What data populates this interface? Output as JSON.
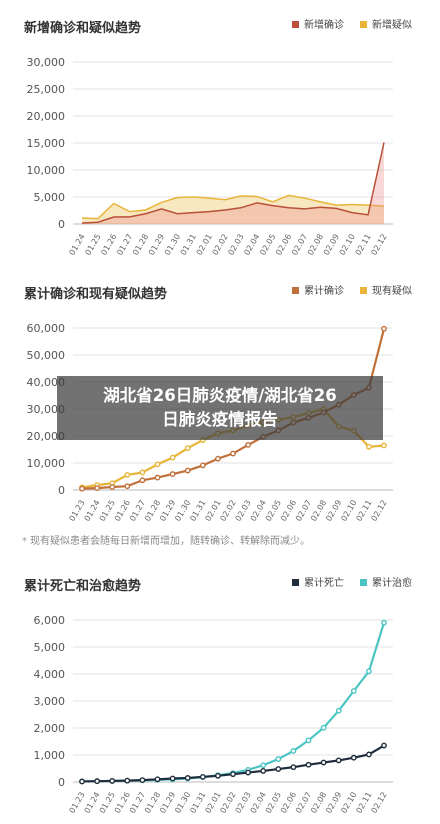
{
  "overlay": {
    "line1": "湖北省26日肺炎疫情/湖北省26",
    "line2": "日肺炎疫情报告"
  },
  "note": "现有疑似患者会随每日新增而增加，随转确诊、转解除而减少。",
  "chart_data": [
    {
      "type": "area",
      "title": "新增确诊和疑似趋势",
      "x": [
        "01.24",
        "01.25",
        "01.26",
        "01.27",
        "01.28",
        "01.29",
        "01.30",
        "01.31",
        "02.01",
        "02.02",
        "02.03",
        "02.04",
        "02.05",
        "02.06",
        "02.07",
        "02.08",
        "02.09",
        "02.10",
        "02.11",
        "02.12"
      ],
      "ylim": [
        0,
        30000
      ],
      "yticks": [
        "0",
        "5,000",
        "10,000",
        "15,000",
        "20,000",
        "25,000",
        "30,000"
      ],
      "grid": true,
      "legend": "top-right",
      "series": [
        {
          "name": "新增确诊",
          "color": "#b9503a",
          "values": [
            180,
            320,
            1300,
            1320,
            1900,
            2800,
            1900,
            2100,
            2300,
            2600,
            3000,
            3900,
            3400,
            3000,
            2800,
            3100,
            2900,
            2100,
            1700,
            15100
          ]
        },
        {
          "name": "新增疑似",
          "color": "#e8b53a",
          "values": [
            1100,
            1000,
            3800,
            2300,
            2600,
            4000,
            4900,
            5000,
            4800,
            4500,
            5200,
            5100,
            4100,
            5300,
            4800,
            4100,
            3500,
            3600,
            3500,
            3300
          ]
        }
      ]
    },
    {
      "type": "line",
      "title": "累计确诊和现有疑似趋势",
      "x": [
        "01.23",
        "01.24",
        "01.25",
        "01.26",
        "01.27",
        "01.28",
        "01.29",
        "01.30",
        "01.31",
        "02.01",
        "02.02",
        "02.03",
        "02.04",
        "02.05",
        "02.06",
        "02.07",
        "02.08",
        "02.09",
        "02.10",
        "02.11",
        "02.12"
      ],
      "ylim": [
        0,
        60000
      ],
      "yticks": [
        "0",
        "10,000",
        "20,000",
        "30,000",
        "40,000",
        "50,000",
        "60,000"
      ],
      "grid": true,
      "legend": "top-right",
      "series": [
        {
          "name": "累计确诊",
          "color": "#c0703a",
          "values": [
            500,
            700,
            1100,
            1400,
            3600,
            4600,
            5900,
            7200,
            9100,
            11600,
            13500,
            16700,
            19700,
            22100,
            25000,
            26700,
            28700,
            31600,
            35200,
            37900,
            59700
          ]
        },
        {
          "name": "现有疑似",
          "color": "#e8b53a",
          "values": [
            1000,
            1800,
            2500,
            5600,
            6500,
            9500,
            12000,
            15500,
            18500,
            21000,
            22000,
            24000,
            25000,
            26000,
            27000,
            28500,
            30000,
            23500,
            22000,
            16000,
            16500
          ]
        }
      ]
    },
    {
      "type": "line",
      "title": "累计死亡和治愈趋势",
      "x": [
        "01.23",
        "01.24",
        "01.25",
        "01.26",
        "01.27",
        "01.28",
        "01.29",
        "01.30",
        "01.31",
        "02.01",
        "02.02",
        "02.03",
        "02.04",
        "02.05",
        "02.06",
        "02.07",
        "02.08",
        "02.09",
        "02.10",
        "02.11",
        "02.12"
      ],
      "ylim": [
        0,
        6000
      ],
      "yticks": [
        "0",
        "1,000",
        "2,000",
        "3,000",
        "4,000",
        "5,000",
        "6,000"
      ],
      "grid": true,
      "legend": "top-right",
      "series": [
        {
          "name": "累计死亡",
          "color": "#1f2d3d",
          "values": [
            20,
            30,
            40,
            50,
            70,
            100,
            130,
            150,
            190,
            230,
            290,
            350,
            410,
            480,
            550,
            640,
            720,
            800,
            900,
            1020,
            1350
          ]
        },
        {
          "name": "累计治愈",
          "color": "#4bc5c3",
          "values": [
            20,
            30,
            40,
            50,
            60,
            80,
            100,
            130,
            180,
            250,
            330,
            450,
            620,
            850,
            1150,
            1540,
            2010,
            2640,
            3370,
            4100,
            5900
          ]
        }
      ]
    }
  ]
}
